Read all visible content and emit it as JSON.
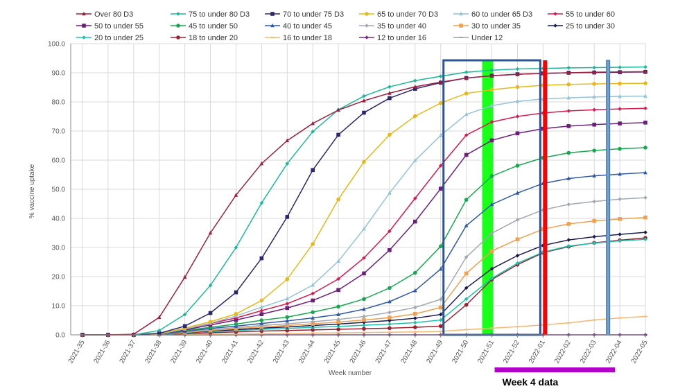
{
  "chart_data": {
    "type": "line",
    "title": "",
    "xlabel": "Week number",
    "ylabel": "% vaccine uptake",
    "ylim": [
      0,
      100
    ],
    "yticks": [
      "0.0",
      "10.0",
      "20.0",
      "30.0",
      "40.0",
      "50.0",
      "60.0",
      "70.0",
      "80.0",
      "90.0",
      "100.0"
    ],
    "categories": [
      "2021-35",
      "2021-36",
      "2021-37",
      "2021-38",
      "2021-39",
      "2021-40",
      "2021-41",
      "2021-42",
      "2021-43",
      "2021-44",
      "2021-45",
      "2021-46",
      "2021-47",
      "2021-48",
      "2021-49",
      "2021-50",
      "2021-51",
      "2021-52",
      "2022-01",
      "2022-02",
      "2022-03",
      "2022-04",
      "2022-05"
    ],
    "grid": true,
    "legend_position": "top",
    "series": [
      {
        "name": "Over 80 D3",
        "color": "#9e1f3f",
        "marker": "triangle",
        "values": [
          0,
          0,
          0.2,
          6,
          19.8,
          35,
          48,
          58.8,
          66.7,
          72.6,
          77.2,
          80.4,
          83,
          85.2,
          86.8,
          88.2,
          89,
          89.5,
          89.8,
          90,
          90.2,
          90.3,
          90.4
        ]
      },
      {
        "name": "75 to under 80 D3",
        "color": "#1ab899",
        "marker": "diamond",
        "values": [
          0,
          0,
          0,
          1.5,
          7,
          17,
          30,
          45.3,
          58.8,
          69.8,
          77.3,
          82,
          85.2,
          87.3,
          88.8,
          90.2,
          90.9,
          91.3,
          91.5,
          91.7,
          91.8,
          91.9,
          92
        ]
      },
      {
        "name": "70 to under 75 D3",
        "color": "#2b2670",
        "marker": "square",
        "values": [
          0,
          0,
          0,
          0.5,
          3,
          7.5,
          14.6,
          26.3,
          40.5,
          56.6,
          68.7,
          76.3,
          81.3,
          84.5,
          86.6,
          88.2,
          89,
          89.5,
          89.8,
          90,
          90.1,
          90.2,
          90.3
        ]
      },
      {
        "name": "65 to under 70 D3",
        "color": "#e8b818",
        "marker": "circle",
        "values": [
          0,
          0,
          0,
          0.4,
          2.3,
          4.5,
          7.2,
          11.8,
          19.1,
          31.2,
          46.5,
          59.4,
          68.7,
          75.1,
          79.6,
          82.9,
          84.2,
          85.1,
          85.7,
          86,
          86.2,
          86.3,
          86.4
        ]
      },
      {
        "name": "60 to under 65 D3",
        "color": "#93c4d6",
        "marker": "triangle",
        "values": [
          0,
          0,
          0,
          0.3,
          2,
          4,
          6.5,
          9.5,
          12.4,
          17.1,
          25.3,
          36.4,
          48.7,
          59.9,
          68.5,
          75.7,
          78.7,
          80.2,
          81,
          81.4,
          81.7,
          81.9,
          82
        ]
      },
      {
        "name": "55 to under 60",
        "color": "#d8194f",
        "marker": "diamond",
        "values": [
          0,
          0,
          0,
          0.3,
          2,
          3.9,
          5.8,
          8.3,
          10.7,
          14.2,
          19.2,
          26.4,
          35.6,
          46.9,
          58.1,
          68.6,
          73.1,
          75,
          76.2,
          76.9,
          77.3,
          77.6,
          77.8
        ]
      },
      {
        "name": "50 to under 55",
        "color": "#6b1e7a",
        "marker": "square",
        "values": [
          0,
          0,
          0,
          0.3,
          1.7,
          3.4,
          5.1,
          7.1,
          9.2,
          11.8,
          15.4,
          21.1,
          29.1,
          38.9,
          50.2,
          61.8,
          66.8,
          69.2,
          70.8,
          71.7,
          72.2,
          72.6,
          72.9
        ]
      },
      {
        "name": "45 to under 50",
        "color": "#16a84e",
        "marker": "circle",
        "values": [
          0,
          0,
          0,
          0.3,
          1.5,
          2.6,
          3.7,
          5,
          6.1,
          7.8,
          9.7,
          12.3,
          16.1,
          21.3,
          30.4,
          46.4,
          54.5,
          58.1,
          60.8,
          62.5,
          63.3,
          63.9,
          64.3
        ]
      },
      {
        "name": "40 to under 45",
        "color": "#2e58a8",
        "marker": "triangle",
        "values": [
          0,
          0,
          0,
          0.2,
          1.2,
          2.2,
          3,
          3.9,
          4.8,
          5.8,
          7,
          8.8,
          11.4,
          15.2,
          22.6,
          37.5,
          44.8,
          48.7,
          52,
          53.7,
          54.6,
          55.2,
          55.7
        ]
      },
      {
        "name": "35 to under 40",
        "color": "#a2a8b0",
        "marker": "diamond",
        "values": [
          0,
          0,
          0,
          0.2,
          1,
          1.8,
          2.5,
          3.2,
          3.8,
          4.5,
          5.3,
          6.3,
          7.7,
          9.4,
          12.2,
          26.7,
          34.9,
          39.5,
          42.9,
          44.8,
          45.8,
          46.6,
          47.1
        ]
      },
      {
        "name": "30 to under 35",
        "color": "#f0a04f",
        "marker": "square",
        "values": [
          0,
          0,
          0,
          0.2,
          0.8,
          1.5,
          2.1,
          2.7,
          3.2,
          3.8,
          4.4,
          5.1,
          5.9,
          7.2,
          9.4,
          21.1,
          28.8,
          32.8,
          36.3,
          38.1,
          39.1,
          39.8,
          40.3
        ]
      },
      {
        "name": "25 to under 30",
        "color": "#1a1a55",
        "marker": "diamond",
        "values": [
          0,
          0,
          0,
          0.2,
          0.7,
          1.3,
          1.8,
          2.3,
          2.7,
          3.2,
          3.7,
          4.3,
          4.9,
          5.7,
          7,
          16.1,
          22.7,
          27.2,
          30.7,
          32.6,
          33.7,
          34.5,
          35.2
        ]
      },
      {
        "name": "20 to under 25",
        "color": "#1cc2a8",
        "marker": "diamond",
        "values": [
          0,
          0,
          0,
          0.1,
          0.6,
          1.1,
          1.5,
          1.9,
          2.2,
          2.6,
          2.9,
          3.3,
          3.7,
          4.2,
          5.1,
          12.3,
          19.4,
          24.6,
          28.4,
          30.5,
          31.5,
          32.3,
          32.8
        ]
      },
      {
        "name": "18 to under 20",
        "color": "#9a2032",
        "marker": "circle",
        "values": [
          0,
          0,
          0,
          0.1,
          0.4,
          0.7,
          1,
          1.3,
          1.5,
          1.7,
          1.9,
          2.1,
          2.3,
          2.6,
          3,
          10.3,
          19,
          24.1,
          28.2,
          30.3,
          31.6,
          32.5,
          33.3
        ]
      },
      {
        "name": "16 to under 18",
        "color": "#f5b772",
        "marker": "dash",
        "values": [
          0,
          0,
          0,
          0,
          0.1,
          0.2,
          0.3,
          0.4,
          0.5,
          0.6,
          0.7,
          0.8,
          0.9,
          1,
          1.2,
          1.8,
          2.3,
          2.8,
          3.4,
          4.1,
          5.1,
          5.8,
          6.3
        ]
      },
      {
        "name": "12 to under 16",
        "color": "#7b2b8a",
        "marker": "diamond",
        "values": [
          0,
          0,
          0,
          0,
          0,
          0,
          0,
          0,
          0,
          0,
          0,
          0,
          0,
          0,
          0,
          0,
          0,
          0,
          0,
          0,
          0,
          0,
          0
        ]
      },
      {
        "name": "Under 12",
        "color": "#9aa4b8",
        "marker": "dash",
        "values": [
          0,
          0,
          0,
          0,
          0,
          0,
          0,
          0,
          0,
          0,
          0,
          0,
          0,
          0,
          0,
          0,
          0,
          0,
          0,
          0,
          0,
          0,
          0
        ]
      }
    ],
    "annotations": {
      "text": "Week 4 data",
      "blue_box_color": "#2c5596",
      "green_band_color": "#19ff1a",
      "red_line_color": "#ff0000",
      "light_blue_bar_color": "#6f9fce",
      "purple_bar_color": "#b300c8"
    }
  }
}
